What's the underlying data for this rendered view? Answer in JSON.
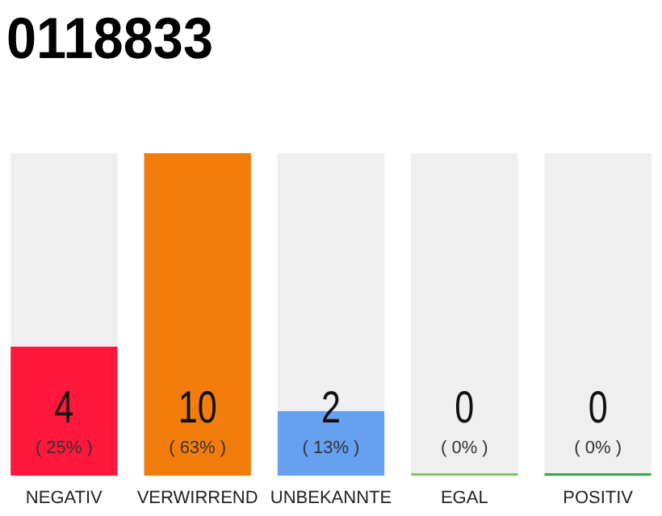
{
  "chart_data": {
    "type": "bar",
    "title": "0118833",
    "categories": [
      "NEGATIV",
      "VERWIRREND",
      "UNBEKANNTE",
      "EGAL",
      "POSITIV"
    ],
    "values": [
      4,
      10,
      2,
      0,
      0
    ],
    "colors": [
      "#ff173d",
      "#f27d0c",
      "#66a0ee",
      "#82c36a",
      "#2ea84e"
    ],
    "value_labels": [
      "4 ( 25% )",
      "10 ( 63% )",
      "2 ( 13% )",
      "0 ( 0% )",
      "0 ( 0% )"
    ],
    "tick_labels": "x"
  }
}
